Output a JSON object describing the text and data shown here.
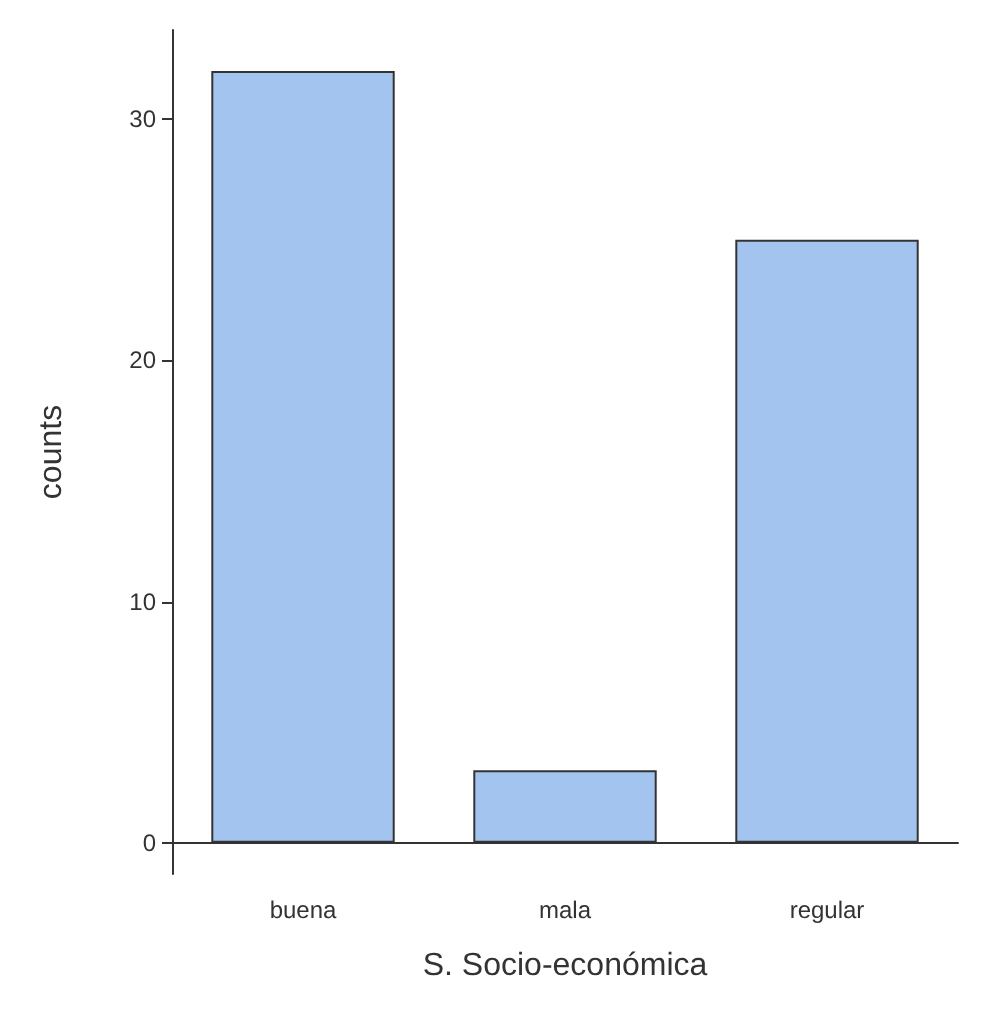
{
  "chart_data": {
    "type": "bar",
    "xlabel": "S. Socio-económica",
    "ylabel": "counts",
    "categories": [
      "buena",
      "mala",
      "regular"
    ],
    "values": [
      32,
      3,
      25
    ],
    "color": "#a4c4f0",
    "ylim": [
      -1.3,
      33.7
    ],
    "yticks": [
      0,
      10,
      20,
      30
    ],
    "grid": false
  }
}
